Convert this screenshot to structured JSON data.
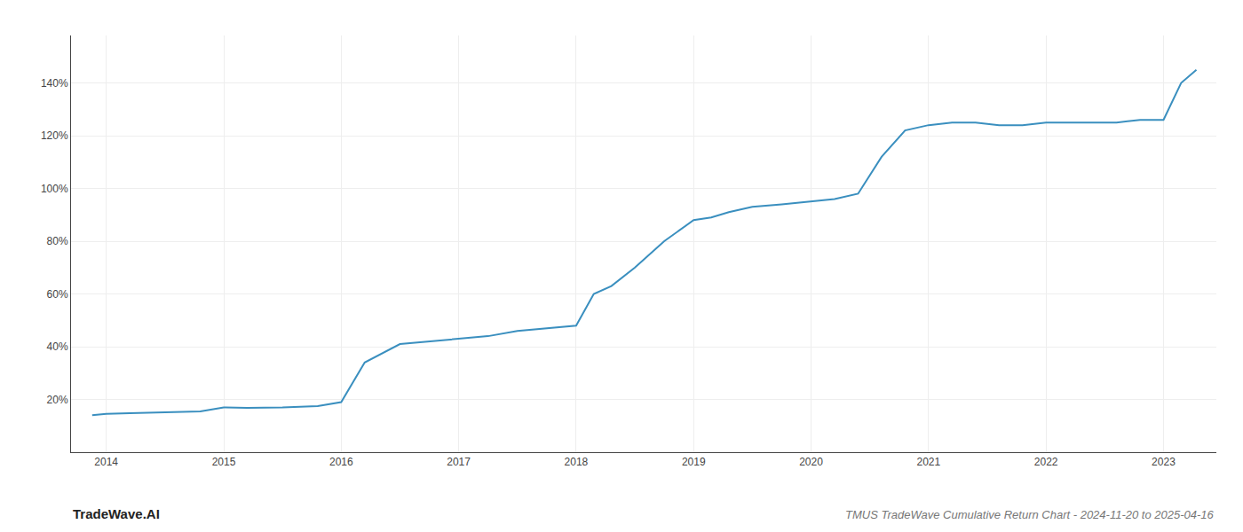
{
  "chart_data": {
    "type": "line",
    "title": "TMUS TradeWave Cumulative Return Chart - 2024-11-20 to 2025-04-16",
    "annotations": [
      {
        "text": "TradeWave.AI"
      }
    ],
    "x": [
      2013.88,
      2014.0,
      2014.2,
      2014.4,
      2014.6,
      2014.8,
      2015.0,
      2015.2,
      2015.5,
      2015.8,
      2016.0,
      2016.2,
      2016.5,
      2016.75,
      2017.0,
      2017.25,
      2017.5,
      2017.75,
      2018.0,
      2018.15,
      2018.3,
      2018.5,
      2018.75,
      2019.0,
      2019.15,
      2019.3,
      2019.5,
      2019.75,
      2020.0,
      2020.2,
      2020.4,
      2020.6,
      2020.8,
      2021.0,
      2021.2,
      2021.4,
      2021.6,
      2021.8,
      2022.0,
      2022.2,
      2022.4,
      2022.6,
      2022.8,
      2023.0,
      2023.15,
      2023.28
    ],
    "values": [
      14,
      14.5,
      14.8,
      15.0,
      15.2,
      15.5,
      17,
      16.8,
      17.0,
      17.5,
      19,
      34,
      41,
      42,
      43,
      44,
      46,
      47,
      48,
      60,
      63,
      70,
      80,
      88,
      89,
      91,
      93,
      94,
      95,
      96,
      98,
      112,
      122,
      124,
      125,
      125,
      124,
      124,
      125,
      125,
      125,
      125,
      126,
      126,
      140,
      145
    ],
    "color": "#3a8fbf",
    "xlim": [
      2013.7,
      2023.45
    ],
    "ylim": [
      0,
      158
    ],
    "xticks": [
      2014,
      2015,
      2016,
      2017,
      2018,
      2019,
      2020,
      2021,
      2022,
      2023
    ],
    "yticks": [
      {
        "value": 20,
        "label": "20%"
      },
      {
        "value": 40,
        "label": "40%"
      },
      {
        "value": 60,
        "label": "60%"
      },
      {
        "value": 80,
        "label": "80%"
      },
      {
        "value": 100,
        "label": "100%"
      },
      {
        "value": 120,
        "label": "120%"
      },
      {
        "value": 140,
        "label": "140%"
      }
    ],
    "grid": true
  }
}
